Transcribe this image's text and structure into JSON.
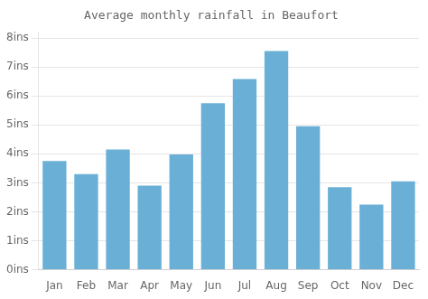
{
  "chart_data": {
    "type": "bar",
    "title": "Average monthly rainfall in Beaufort",
    "categories": [
      "Jan",
      "Feb",
      "Mar",
      "Apr",
      "May",
      "Jun",
      "Jul",
      "Aug",
      "Sep",
      "Oct",
      "Nov",
      "Dec"
    ],
    "values": [
      3.75,
      3.3,
      4.15,
      2.9,
      3.98,
      5.75,
      6.58,
      7.55,
      4.95,
      2.85,
      2.25,
      3.05
    ],
    "color": "#6aafd6",
    "ylim": [
      0,
      8.2
    ],
    "yticks": [
      {
        "value": 0,
        "label": "0ins"
      },
      {
        "value": 1,
        "label": "1ins"
      },
      {
        "value": 2,
        "label": "2ins"
      },
      {
        "value": 3,
        "label": "3ins"
      },
      {
        "value": 4,
        "label": "4ins"
      },
      {
        "value": 5,
        "label": "5ins"
      },
      {
        "value": 6,
        "label": "6ins"
      },
      {
        "value": 7,
        "label": "7ins"
      },
      {
        "value": 8,
        "label": "8ins"
      }
    ],
    "grid": true
  }
}
